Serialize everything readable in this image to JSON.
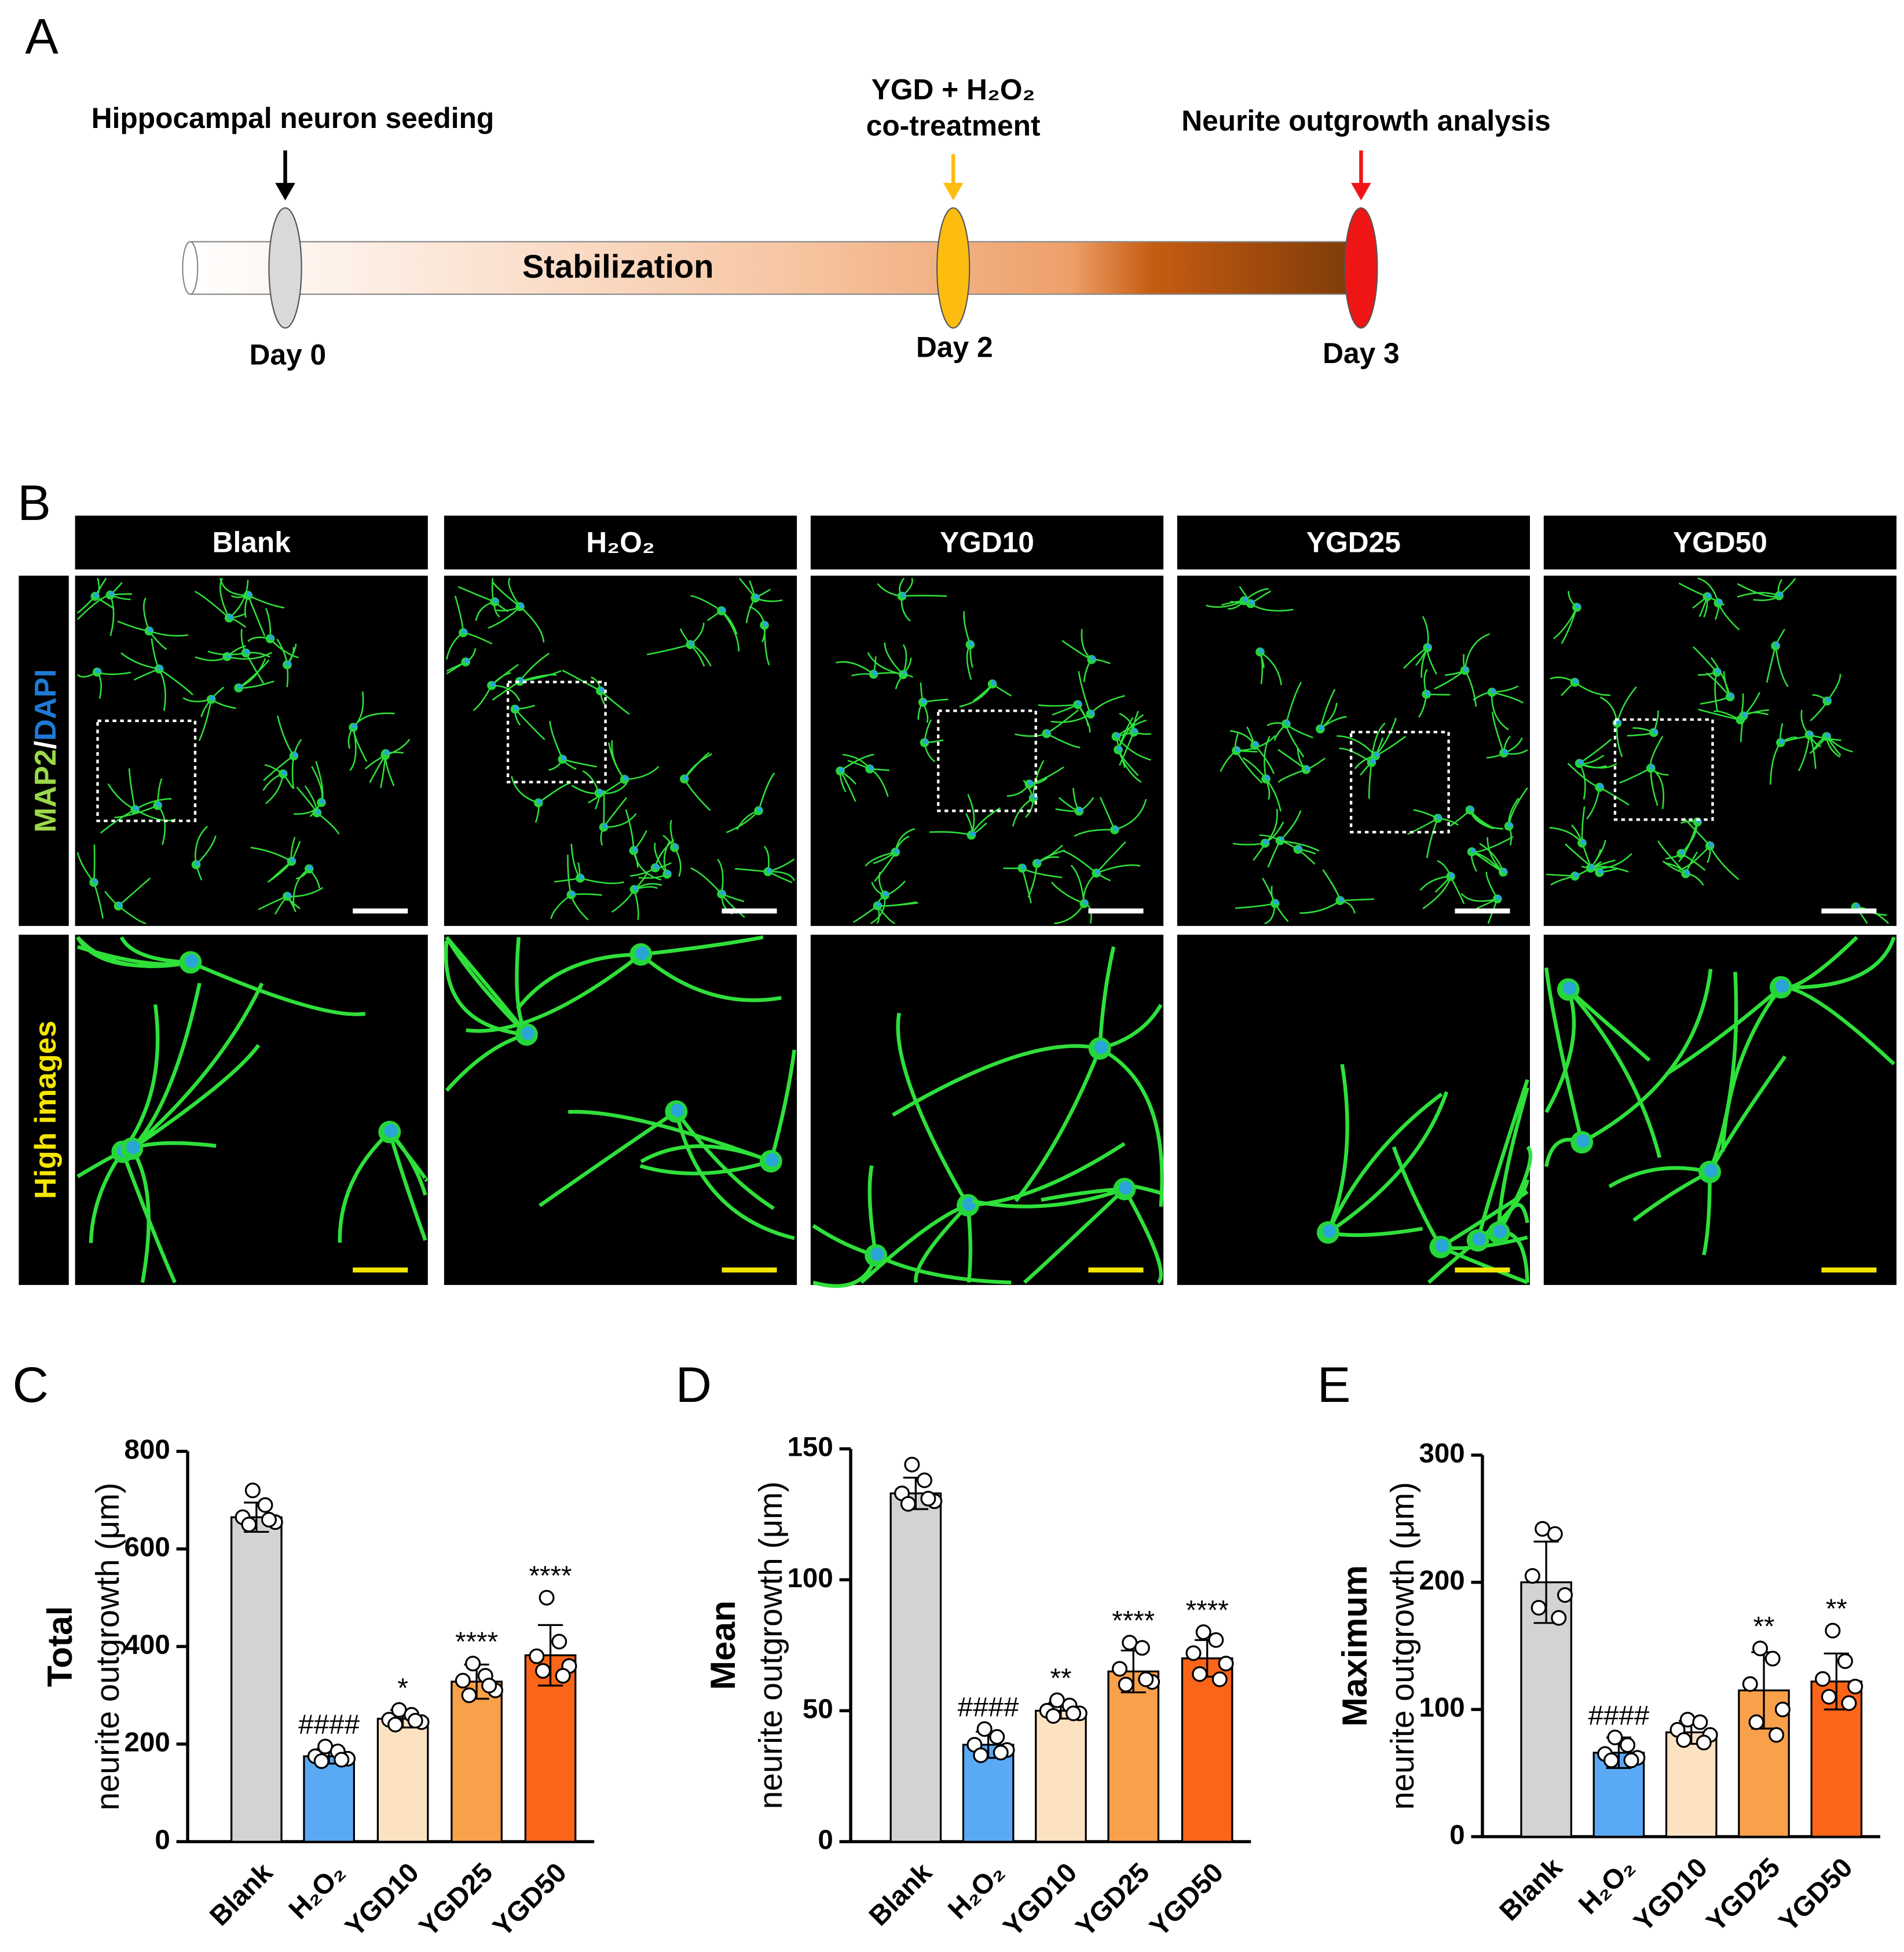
{
  "panel_a": {
    "label": "A",
    "phase": "Stabilization",
    "steps": [
      {
        "title": [
          "Hippocampal neuron seeding"
        ],
        "day": "Day 0"
      },
      {
        "title": [
          "YGD + H₂O₂",
          "co-treatment"
        ],
        "day": "Day 2"
      },
      {
        "title": [
          "Neurite outgrowth analysis"
        ],
        "day": "Day 3"
      }
    ]
  },
  "panel_b": {
    "label": "B",
    "columns": [
      "Blank",
      "H₂O₂",
      "YGD10",
      "YGD25",
      "YGD50"
    ],
    "row_labels": [
      [
        "MAP2",
        "/",
        "DAPI"
      ],
      [
        "High images"
      ]
    ]
  },
  "chart_data": [
    {
      "type": "bar",
      "panel_label": "C",
      "y_label_bold": "Total",
      "y_label": "neurite outgrowth (μm)",
      "categories": [
        "Blank",
        "H₂O₂",
        "YGD10",
        "YGD25",
        "YGD50"
      ],
      "colors": [
        "#d3d3d3",
        "#5aa9f5",
        "#fde2c2",
        "#f9a04b",
        "#fa6519"
      ],
      "values": [
        665,
        175,
        252,
        328,
        382
      ],
      "errors": [
        30,
        15,
        18,
        35,
        62
      ],
      "points": [
        [
          720,
          690,
          665,
          655,
          650,
          660
        ],
        [
          195,
          185,
          175,
          170,
          165,
          168
        ],
        [
          270,
          260,
          250,
          245,
          240,
          248
        ],
        [
          365,
          340,
          330,
          310,
          300,
          320
        ],
        [
          500,
          410,
          380,
          360,
          350,
          340
        ]
      ],
      "annotations": [
        null,
        "####",
        "*",
        "****",
        "****"
      ],
      "ylim": [
        0,
        800
      ],
      "yticks": [
        0,
        200,
        400,
        600,
        800
      ]
    },
    {
      "type": "bar",
      "panel_label": "D",
      "y_label_bold": "Mean",
      "y_label": "neurite outgrowth (μm)",
      "categories": [
        "Blank",
        "H₂O₂",
        "YGD10",
        "YGD25",
        "YGD50"
      ],
      "colors": [
        "#d3d3d3",
        "#5aa9f5",
        "#fde2c2",
        "#f9a04b",
        "#fa6519"
      ],
      "values": [
        133,
        37,
        50,
        65,
        70
      ],
      "errors": [
        6,
        5,
        3,
        8,
        7
      ],
      "points": [
        [
          144,
          138,
          133,
          130,
          129,
          131
        ],
        [
          43,
          40,
          37,
          35,
          33,
          34
        ],
        [
          54,
          52,
          50,
          49,
          48,
          49
        ],
        [
          76,
          74,
          66,
          61,
          60,
          62
        ],
        [
          80,
          77,
          72,
          68,
          64,
          62
        ]
      ],
      "annotations": [
        null,
        "####",
        "**",
        "****",
        "****"
      ],
      "ylim": [
        0,
        150
      ],
      "yticks": [
        0,
        50,
        100,
        150
      ]
    },
    {
      "type": "bar",
      "panel_label": "E",
      "y_label_bold": "Maximum",
      "y_label": "neurite outgrowth (μm)",
      "categories": [
        "Blank",
        "H₂O₂",
        "YGD10",
        "YGD25",
        "YGD50"
      ],
      "colors": [
        "#d3d3d3",
        "#5aa9f5",
        "#fde2c2",
        "#f9a04b",
        "#fa6519"
      ],
      "values": [
        200,
        66,
        82,
        115,
        122
      ],
      "errors": [
        32,
        12,
        9,
        30,
        22
      ],
      "points": [
        [
          242,
          238,
          205,
          190,
          180,
          172
        ],
        [
          78,
          72,
          65,
          62,
          60,
          60
        ],
        [
          92,
          90,
          84,
          80,
          76,
          74
        ],
        [
          148,
          140,
          120,
          100,
          90,
          80
        ],
        [
          162,
          138,
          124,
          118,
          110,
          105
        ]
      ],
      "annotations": [
        null,
        "####",
        null,
        "**",
        "**"
      ],
      "ylim": [
        0,
        300
      ],
      "yticks": [
        0,
        100,
        200,
        300
      ]
    }
  ]
}
